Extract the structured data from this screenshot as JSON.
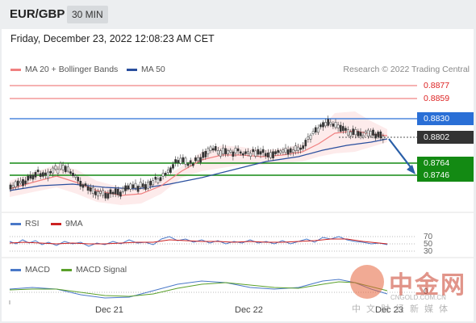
{
  "header": {
    "pair": "EUR/GBP",
    "timeframe": "30 MIN"
  },
  "timestamp": "Friday, December 23, 2022 12:08:23 AM CET",
  "legend": {
    "ma20": {
      "label": "MA 20 + Bollinger Bands",
      "color": "#f08080"
    },
    "ma50": {
      "label": "MA 50",
      "color": "#2a4f9e"
    }
  },
  "credit": "Research © 2022 Trading Central",
  "levels": [
    {
      "value": "0.8877",
      "kind": "red"
    },
    {
      "value": "0.8859",
      "kind": "red"
    },
    {
      "value": "0.8830",
      "kind": "blue"
    },
    {
      "value": "0.8802",
      "kind": "dark"
    },
    {
      "value": "0.8764",
      "kind": "green"
    },
    {
      "value": "0.8746",
      "kind": "green"
    }
  ],
  "rsi": {
    "label": "RSI",
    "ma_label": "9MA",
    "ticks": [
      "70",
      "50",
      "30"
    ],
    "colors": {
      "rsi": "#4a78c8",
      "ma": "#cc2222"
    }
  },
  "macd": {
    "label": "MACD",
    "signal_label": "MACD Signal",
    "ticks": [
      "0"
    ],
    "colors": {
      "macd": "#4a78c8",
      "signal": "#5aa02a"
    }
  },
  "xaxis": [
    "Dec 21",
    "Dec 22",
    "Dec 23"
  ],
  "watermark": {
    "cn": "中金网",
    "url": "CNGOLD.COM.CN",
    "sub": "中文财经新媒体"
  }
}
